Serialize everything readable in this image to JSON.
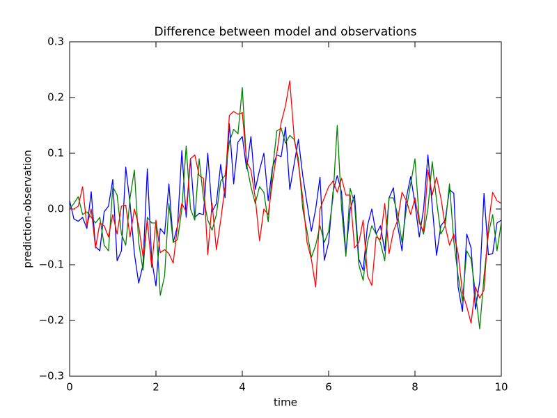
{
  "chart_data": {
    "type": "line",
    "title": "Difference between model and observations",
    "x_label": "time",
    "y_label": "prediction-observation",
    "x": [
      0,
      0.1,
      0.2,
      0.3,
      0.4,
      0.5,
      0.6,
      0.7,
      0.8,
      0.9,
      1,
      1.1,
      1.2,
      1.3,
      1.4,
      1.5,
      1.6,
      1.7,
      1.8,
      1.9,
      2,
      2.1,
      2.2,
      2.3,
      2.4,
      2.5,
      2.6,
      2.7,
      2.8,
      2.9,
      3,
      3.1,
      3.2,
      3.3,
      3.4,
      3.5,
      3.6,
      3.7,
      3.8,
      3.9,
      4,
      4.1,
      4.2,
      4.3,
      4.4,
      4.5,
      4.6,
      4.7,
      4.8,
      4.9,
      5,
      5.1,
      5.2,
      5.3,
      5.4,
      5.5,
      5.6,
      5.7,
      5.8,
      5.9,
      6,
      6.1,
      6.2,
      6.3,
      6.4,
      6.5,
      6.6,
      6.7,
      6.8,
      6.9,
      7,
      7.1,
      7.2,
      7.3,
      7.4,
      7.5,
      7.6,
      7.7,
      7.8,
      7.9,
      8,
      8.1,
      8.2,
      8.3,
      8.4,
      8.5,
      8.6,
      8.7,
      8.8,
      8.9,
      9,
      9.1,
      9.2,
      9.3,
      9.4,
      9.5,
      9.6,
      9.7,
      9.8,
      9.9,
      10
    ],
    "series": [
      {
        "color": "#0000ff",
        "values": [
          0.015,
          -0.018,
          -0.022,
          -0.015,
          -0.035,
          0.031,
          -0.068,
          -0.075,
          -0.005,
          0.005,
          0.053,
          -0.093,
          -0.075,
          0.075,
          0.01,
          -0.08,
          -0.133,
          -0.1,
          0.072,
          -0.09,
          -0.138,
          -0.035,
          -0.045,
          0.045,
          -0.06,
          -0.03,
          0.105,
          -0.015,
          0.09,
          -0.015,
          -0.008,
          -0.01,
          0.1,
          -0.005,
          0.01,
          0.08,
          0.02,
          0.153,
          0.045,
          0.12,
          0.13,
          0.072,
          0.13,
          0.035,
          0.07,
          0.1,
          0.015,
          0.075,
          0.097,
          0.094,
          0.147,
          0.035,
          0.08,
          0.125,
          0.06,
          0.01,
          -0.04,
          0.0,
          0.057,
          -0.092,
          -0.06,
          0.03,
          0.06,
          0.03,
          -0.08,
          0.0,
          0.025,
          -0.09,
          -0.11,
          -0.03,
          0.0,
          -0.045,
          -0.03,
          -0.075,
          0.02,
          0.038,
          -0.03,
          -0.075,
          0.02,
          0.058,
          0.01,
          -0.05,
          0.0,
          0.097,
          0.005,
          -0.083,
          -0.03,
          -0.02,
          0.035,
          0.028,
          -0.14,
          -0.184,
          -0.045,
          -0.07,
          -0.18,
          -0.13,
          0.028,
          -0.082,
          -0.08,
          -0.025,
          -0.02
        ]
      },
      {
        "color": "#008000",
        "values": [
          0.0,
          0.01,
          0.022,
          -0.01,
          -0.005,
          -0.015,
          -0.025,
          -0.015,
          -0.065,
          -0.075,
          0.04,
          0.025,
          -0.045,
          -0.065,
          0.02,
          0.07,
          -0.06,
          -0.11,
          -0.015,
          -0.025,
          -0.025,
          -0.155,
          -0.12,
          0.01,
          -0.06,
          -0.055,
          0.0,
          0.113,
          0.0,
          -0.02,
          0.09,
          0.02,
          -0.02,
          -0.038,
          -0.01,
          0.05,
          0.06,
          0.12,
          0.143,
          0.135,
          0.218,
          0.08,
          0.04,
          0.01,
          0.04,
          0.03,
          -0.023,
          0.07,
          0.14,
          0.145,
          0.118,
          0.132,
          0.125,
          0.09,
          0.0,
          -0.04,
          -0.087,
          -0.065,
          -0.03,
          -0.06,
          -0.04,
          0.02,
          0.15,
          0.0,
          -0.085,
          0.037,
          0.01,
          -0.1,
          -0.128,
          -0.06,
          -0.03,
          -0.045,
          -0.06,
          -0.093,
          0.02,
          0.02,
          -0.01,
          -0.06,
          0.0,
          0.045,
          0.09,
          -0.02,
          -0.045,
          0.0,
          0.085,
          0.015,
          -0.045,
          -0.03,
          0.045,
          -0.058,
          -0.12,
          -0.165,
          -0.075,
          -0.09,
          -0.15,
          -0.215,
          -0.12,
          -0.045,
          -0.01,
          -0.075,
          -0.025
        ]
      },
      {
        "color": "#ff0000",
        "values": [
          0.0,
          0.0,
          0.005,
          0.04,
          -0.03,
          0.0,
          -0.07,
          -0.025,
          -0.03,
          -0.05,
          -0.01,
          -0.045,
          0.005,
          0.007,
          -0.05,
          0.0,
          -0.03,
          -0.085,
          -0.02,
          -0.105,
          -0.02,
          -0.078,
          -0.073,
          -0.08,
          -0.097,
          -0.03,
          0.01,
          -0.005,
          0.09,
          0.097,
          0.06,
          0.055,
          -0.082,
          0.01,
          -0.073,
          -0.02,
          0.04,
          0.168,
          0.175,
          0.17,
          0.173,
          0.085,
          0.07,
          0.02,
          -0.057,
          0.0,
          -0.01,
          0.05,
          0.1,
          0.155,
          0.185,
          0.23,
          0.13,
          0.08,
          0.02,
          -0.06,
          -0.09,
          -0.14,
          0.0,
          0.02,
          0.04,
          0.05,
          0.03,
          0.055,
          0.025,
          0.025,
          -0.07,
          -0.06,
          -0.02,
          -0.12,
          -0.137,
          -0.05,
          -0.055,
          0.01,
          -0.08,
          -0.04,
          -0.02,
          0.03,
          0.015,
          -0.01,
          0.02,
          -0.025,
          -0.04,
          0.07,
          0.025,
          0.057,
          0.02,
          -0.03,
          -0.065,
          -0.045,
          -0.08,
          -0.15,
          -0.175,
          -0.205,
          -0.14,
          -0.16,
          -0.145,
          -0.03,
          0.03,
          0.015,
          0.01
        ]
      }
    ],
    "xlim": [
      0,
      10
    ],
    "xticks": [
      0,
      2,
      4,
      6,
      8,
      10
    ],
    "ylim": [
      -0.3,
      0.3
    ],
    "yticks": [
      {
        "value": -0.3,
        "label": "−0.3"
      },
      {
        "value": -0.2,
        "label": "−0.2"
      },
      {
        "value": -0.1,
        "label": "−0.1"
      },
      {
        "value": 0,
        "label": "0.0"
      },
      0.1,
      0.2,
      0.3
    ],
    "grid": false
  }
}
